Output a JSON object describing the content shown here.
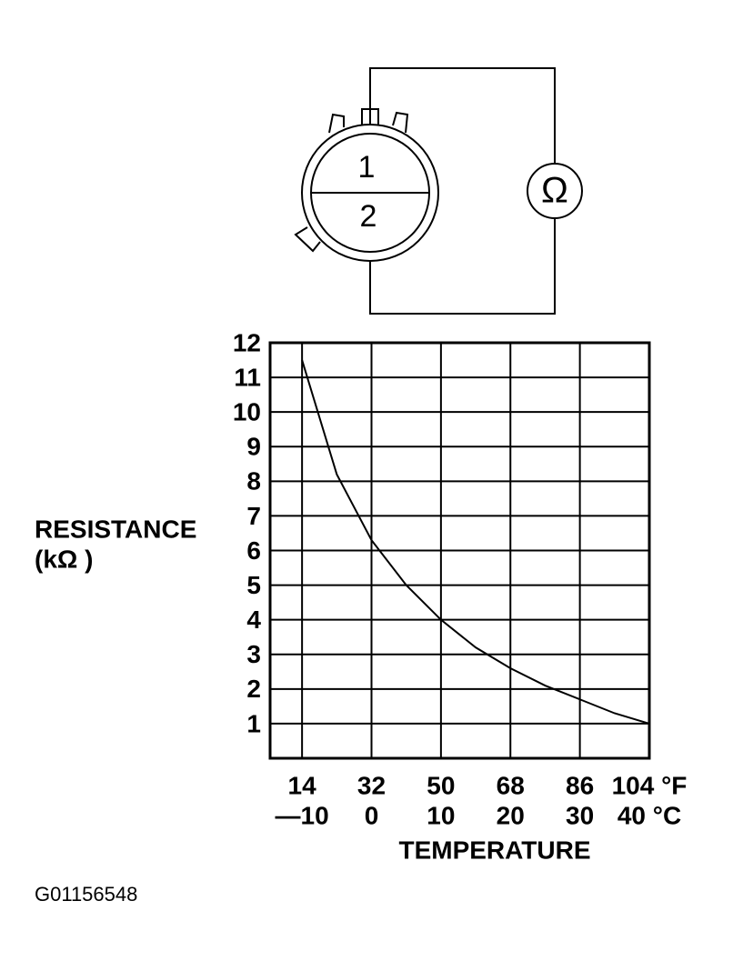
{
  "diagram": {
    "pin_1": "1",
    "pin_2": "2",
    "meter": "Ω",
    "figure_id": "G01156548"
  },
  "chart_data": {
    "type": "line",
    "ylabel": [
      "RESISTANCE",
      "(kΩ )"
    ],
    "xlabel": "TEMPERATURE",
    "x": [
      -10,
      -5,
      0,
      5,
      10,
      15,
      20,
      25,
      30,
      35,
      40
    ],
    "series": [
      {
        "color": "#000000",
        "values": [
          11.5,
          8.2,
          6.3,
          5.0,
          4.0,
          3.2,
          2.6,
          2.1,
          1.7,
          1.3,
          1.0
        ]
      }
    ],
    "xlim": [
      -14.6,
      40
    ],
    "ylim": [
      0,
      12
    ],
    "xticks": [
      {
        "value": -10,
        "label": "—10"
      },
      0,
      10,
      20,
      30,
      {
        "value": 40,
        "label": "40 °C"
      }
    ],
    "xticks_f": [
      {
        "value": -10,
        "label": "14"
      },
      {
        "value": 0,
        "label": "32"
      },
      {
        "value": 10,
        "label": "50"
      },
      {
        "value": 20,
        "label": "68"
      },
      {
        "value": 30,
        "label": "86"
      },
      {
        "value": 40,
        "label": "104 °F"
      }
    ],
    "yticks": [
      1,
      2,
      3,
      4,
      5,
      6,
      7,
      8,
      9,
      10,
      11,
      12
    ],
    "grid": true
  }
}
